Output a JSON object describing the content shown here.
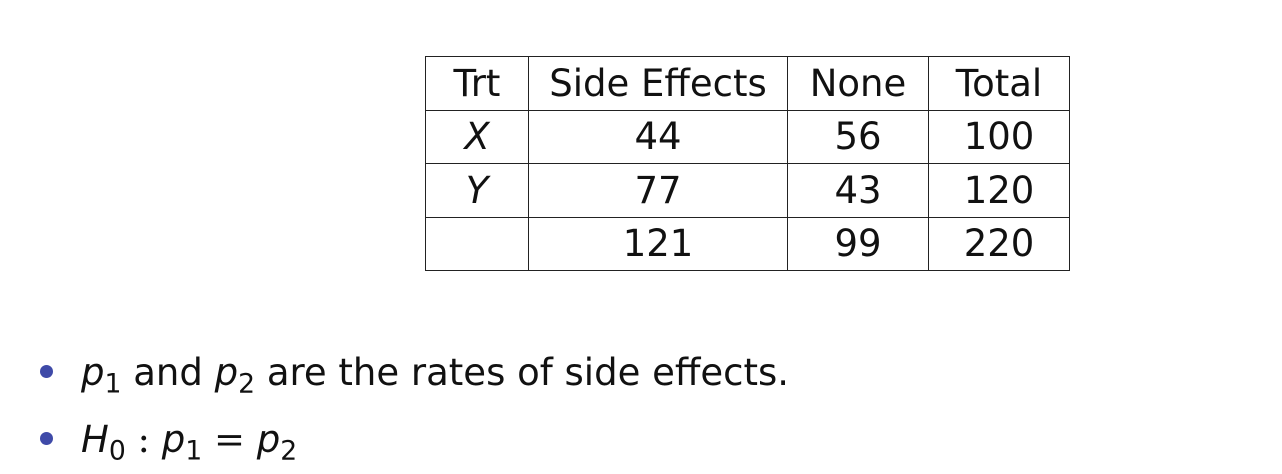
{
  "table": {
    "headers": [
      "Trt",
      "Side Effects",
      "None",
      "Total"
    ],
    "rows": [
      {
        "trt": "X",
        "side_effects": "44",
        "none": "56",
        "total": "100"
      },
      {
        "trt": "Y",
        "side_effects": "77",
        "none": "43",
        "total": "120"
      },
      {
        "trt": "",
        "side_effects": "121",
        "none": "99",
        "total": "220"
      }
    ]
  },
  "bullets": {
    "b1": {
      "var1": "p",
      "sub1": "1",
      "conj": "and",
      "var2": "p",
      "sub2": "2",
      "rest": "are the rates of side effects."
    },
    "b2": {
      "h": "H",
      "h_sub": "0",
      "colon": ":",
      "var1": "p",
      "sub1": "1",
      "eq": "=",
      "var2": "p",
      "sub2": "2"
    }
  },
  "colors": {
    "bullet": "#3f4aa8",
    "text": "#111111"
  }
}
